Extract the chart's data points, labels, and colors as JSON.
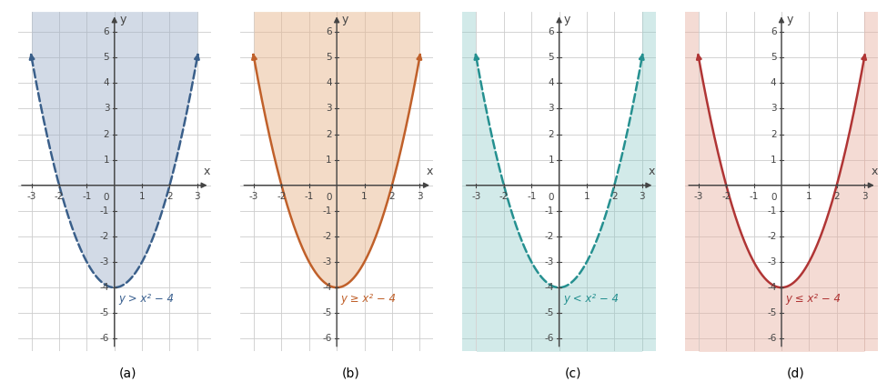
{
  "subplots": [
    {
      "label": "(a)",
      "inequality": "y > x² − 4",
      "shade_above": true,
      "dashed": true,
      "curve_color": "#3a5f8a",
      "shade_color": "#9dafc8",
      "shade_alpha": 0.45,
      "text_color": "#3a6090"
    },
    {
      "label": "(b)",
      "inequality": "y ≥ x² − 4",
      "shade_above": true,
      "dashed": false,
      "curve_color": "#c0602a",
      "shade_color": "#e8b890",
      "shade_alpha": 0.5,
      "text_color": "#c0602a"
    },
    {
      "label": "(c)",
      "inequality": "y < x² − 4",
      "shade_above": false,
      "dashed": true,
      "curve_color": "#259090",
      "shade_color": "#90ccc8",
      "shade_alpha": 0.4,
      "text_color": "#259090"
    },
    {
      "label": "(d)",
      "inequality": "y ≤ x² − 4",
      "shade_above": false,
      "dashed": false,
      "curve_color": "#b03535",
      "shade_color": "#e8b0a0",
      "shade_alpha": 0.45,
      "text_color": "#b03535"
    }
  ],
  "xlim": [
    -3.5,
    3.5
  ],
  "ylim": [
    -6.5,
    6.8
  ],
  "xticks": [
    -3,
    -2,
    -1,
    1,
    2,
    3
  ],
  "yticks": [
    -6,
    -5,
    -4,
    -3,
    -2,
    -1,
    1,
    2,
    3,
    4,
    5,
    6
  ],
  "grid_color": "#cccccc",
  "axis_color": "#444444",
  "background_color": "#ffffff",
  "figsize": [
    9.75,
    4.2
  ],
  "dpi": 100,
  "tick_fontsize": 7.5
}
